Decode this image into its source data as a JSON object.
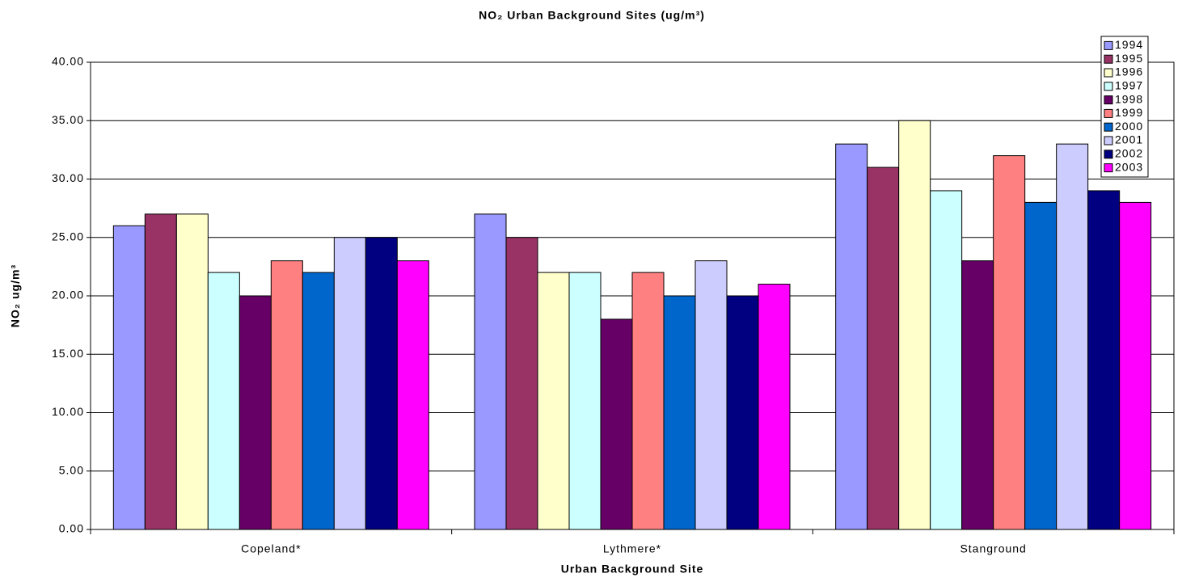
{
  "chart_data": {
    "type": "bar",
    "title": "NO₂ Urban Background Sites (ug/m³)",
    "x_label": "Urban Background Site",
    "y_label": "NO₂ ug/m³",
    "categories": [
      "Copeland*",
      "Lythmere*",
      "Stanground"
    ],
    "series": [
      {
        "name": "1994",
        "color": "#9999ff",
        "values": [
          26,
          27,
          33
        ]
      },
      {
        "name": "1995",
        "color": "#993366",
        "values": [
          27,
          25,
          31
        ]
      },
      {
        "name": "1996",
        "color": "#ffffcc",
        "values": [
          27,
          22,
          35
        ]
      },
      {
        "name": "1997",
        "color": "#ccffff",
        "values": [
          22,
          22,
          29
        ]
      },
      {
        "name": "1998",
        "color": "#660066",
        "values": [
          20,
          18,
          23
        ]
      },
      {
        "name": "1999",
        "color": "#ff8080",
        "values": [
          23,
          22,
          32
        ]
      },
      {
        "name": "2000",
        "color": "#0066cc",
        "values": [
          22,
          20,
          28
        ]
      },
      {
        "name": "2001",
        "color": "#ccccff",
        "values": [
          25,
          23,
          33
        ]
      },
      {
        "name": "2002",
        "color": "#000080",
        "values": [
          25,
          20,
          29
        ]
      },
      {
        "name": "2003",
        "color": "#ff00ff",
        "values": [
          23,
          21,
          28
        ]
      }
    ],
    "ylim": [
      0,
      40
    ],
    "yticks": [
      {
        "value": 0,
        "label": "0.00"
      },
      {
        "value": 5,
        "label": "5.00"
      },
      {
        "value": 10,
        "label": "10.00"
      },
      {
        "value": 15,
        "label": "15.00"
      },
      {
        "value": 20,
        "label": "20.00"
      },
      {
        "value": 25,
        "label": "25.00"
      },
      {
        "value": 30,
        "label": "30.00"
      },
      {
        "value": 35,
        "label": "35.00"
      },
      {
        "value": 40,
        "label": "40.00"
      }
    ],
    "grid": true,
    "legend": "top-right"
  }
}
